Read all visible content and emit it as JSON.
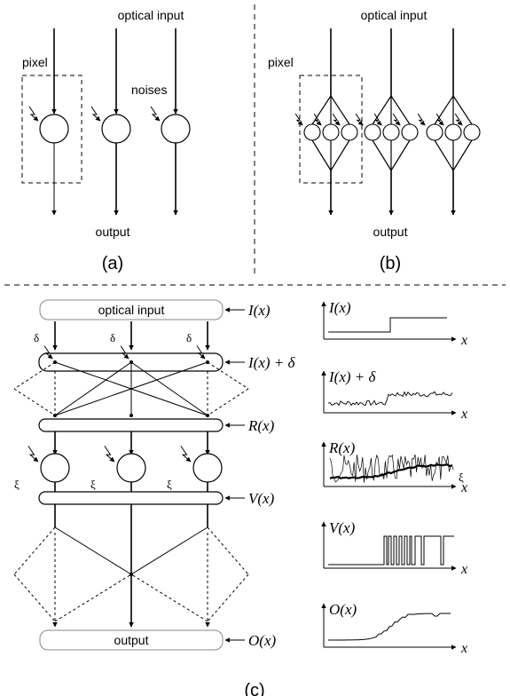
{
  "panel_a": {
    "top_label": "optical input",
    "pixel_label": "pixel",
    "noise_label": "noises",
    "bottom_label": "output",
    "caption": "(a)"
  },
  "panel_b": {
    "top_label": "optical input",
    "pixel_label": "pixel",
    "bottom_label": "output",
    "caption": "(b)"
  },
  "panel_c": {
    "input_box": "optical input",
    "output_box": "output",
    "delta_symbol": "δ",
    "xi_symbol": "ξ",
    "stage_labels": {
      "input": "I(x)",
      "input_noise": "I(x) + δ",
      "receptor": "R(x)",
      "neuron": "V(x)",
      "output": "O(x)"
    },
    "plot_x_label": "x",
    "plot_xi_label": "ξ",
    "caption": "(c)"
  }
}
